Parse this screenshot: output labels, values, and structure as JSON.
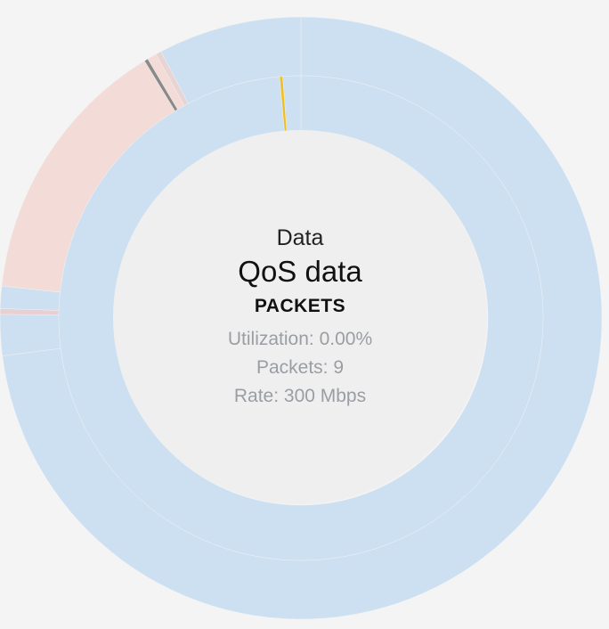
{
  "center": {
    "title": "Data",
    "subtitle": "QoS data",
    "unit": "PACKETS",
    "utilization": "Utilization: 0.00%",
    "packets": "Packets: 9",
    "rate": "Rate: 300 Mbps"
  },
  "chart_data": {
    "type": "pie",
    "outer_ring": [
      {
        "value": 73.0,
        "color": "#cde0f1"
      },
      {
        "value": 2.2,
        "color": "#cde0f1"
      },
      {
        "value": 0.3,
        "color": "#e8cfd2"
      },
      {
        "value": 1.2,
        "color": "#cde0f1"
      },
      {
        "value": 14.6,
        "color": "#f3dcd7"
      },
      {
        "value": 0.2,
        "color": "#8a8a8a"
      },
      {
        "value": 0.5,
        "color": "#f3dcd7"
      },
      {
        "value": 0.3,
        "color": "#e9d4d4"
      },
      {
        "value": 7.7,
        "color": "#cde0f1"
      }
    ],
    "inner_ring": [
      {
        "value": 98.6,
        "color": "#cde0f1"
      },
      {
        "value": 0.2,
        "color": "#f0c020"
      },
      {
        "value": 1.2,
        "color": "#cde0f1"
      }
    ]
  }
}
